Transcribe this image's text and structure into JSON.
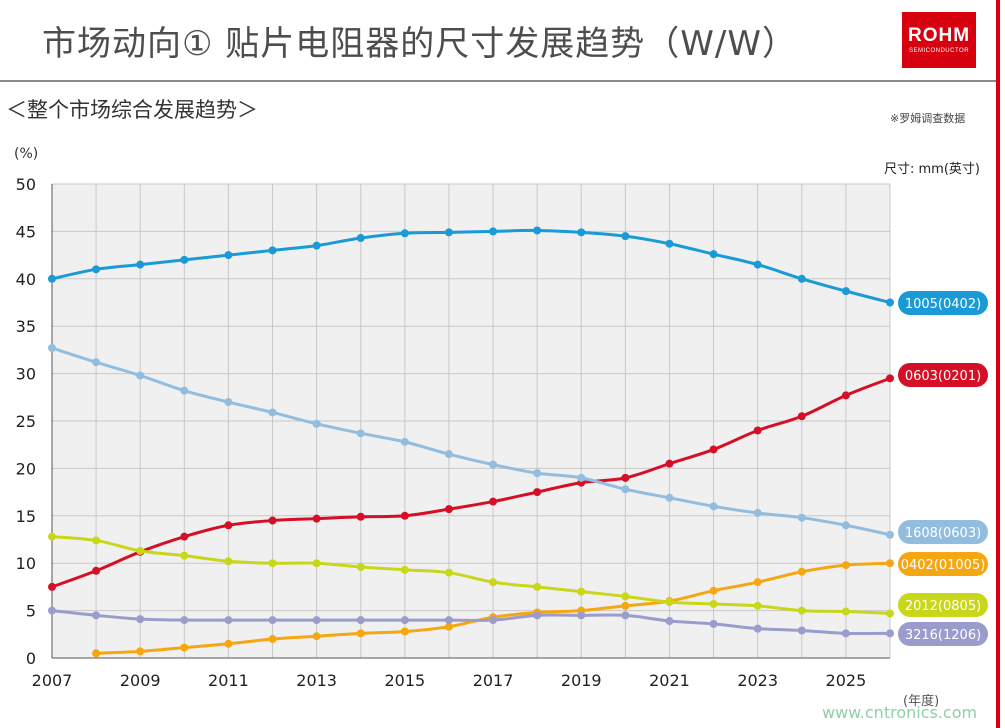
{
  "header": {
    "title": "市场动向① 贴片电阻器的尺寸发展趋势（W/W）",
    "logo_text": "ROHM",
    "logo_subtext": "SEMICONDUCTOR"
  },
  "section_title": "＜整个市场综合发展趋势＞",
  "source_note": "※罗姆调查数据",
  "watermark": "www.cntronics.com",
  "chart_data": {
    "type": "line",
    "title": "",
    "ylabel": "(%)",
    "xlabel": "(年度)",
    "legend_title": "尺寸: mm(英寸)",
    "ylim": [
      0,
      50
    ],
    "xlim": [
      2007,
      2026
    ],
    "yticks": [
      0,
      5,
      10,
      15,
      20,
      25,
      30,
      35,
      40,
      45,
      50
    ],
    "xticks": [
      2007,
      2009,
      2011,
      2013,
      2015,
      2017,
      2019,
      2021,
      2023,
      2025
    ],
    "grid": true,
    "x": [
      2007,
      2008,
      2009,
      2010,
      2011,
      2012,
      2013,
      2014,
      2015,
      2016,
      2017,
      2018,
      2019,
      2020,
      2021,
      2022,
      2023,
      2024,
      2025,
      2026
    ],
    "series": [
      {
        "name": "1005(0402)",
        "color": "#1a9ad6",
        "values": [
          40.0,
          41.0,
          41.5,
          42.0,
          42.5,
          43.0,
          43.5,
          44.3,
          44.8,
          44.9,
          45.0,
          45.1,
          44.9,
          44.5,
          43.7,
          42.6,
          41.5,
          40.0,
          38.7,
          37.5
        ]
      },
      {
        "name": "0603(0201)",
        "color": "#d50f25",
        "values": [
          7.5,
          9.2,
          11.2,
          12.8,
          14.0,
          14.5,
          14.7,
          14.9,
          15.0,
          15.7,
          16.5,
          17.5,
          18.5,
          19.0,
          20.5,
          22.0,
          24.0,
          25.5,
          27.7,
          29.5
        ]
      },
      {
        "name": "1608(0603)",
        "color": "#92bddf",
        "values": [
          32.7,
          31.2,
          29.8,
          28.2,
          27.0,
          25.9,
          24.7,
          23.7,
          22.8,
          21.5,
          20.4,
          19.5,
          19.0,
          17.8,
          16.9,
          16.0,
          15.3,
          14.8,
          14.0,
          13.0
        ]
      },
      {
        "name": "0402(01005)",
        "color": "#f5a712",
        "values": [
          null,
          0.5,
          0.7,
          1.1,
          1.5,
          2.0,
          2.3,
          2.6,
          2.8,
          3.3,
          4.3,
          4.8,
          5.0,
          5.5,
          6.0,
          7.1,
          8.0,
          9.1,
          9.8,
          10.0
        ]
      },
      {
        "name": "2012(0805)",
        "color": "#c8d71a",
        "values": [
          12.8,
          12.4,
          11.3,
          10.8,
          10.2,
          10.0,
          10.0,
          9.6,
          9.3,
          9.0,
          8.0,
          7.5,
          7.0,
          6.5,
          5.9,
          5.7,
          5.5,
          5.0,
          4.9,
          4.7
        ]
      },
      {
        "name": "3216(1206)",
        "color": "#9a9ccc",
        "values": [
          5.0,
          4.5,
          4.1,
          4.0,
          4.0,
          4.0,
          4.0,
          4.0,
          4.0,
          4.0,
          4.0,
          4.5,
          4.5,
          4.5,
          3.9,
          3.6,
          3.1,
          2.9,
          2.6,
          2.6
        ]
      }
    ],
    "label_order": [
      "1005(0402)",
      "0603(0201)",
      "1608(0603)",
      "0402(01005)",
      "2012(0805)",
      "3216(1206)"
    ]
  }
}
